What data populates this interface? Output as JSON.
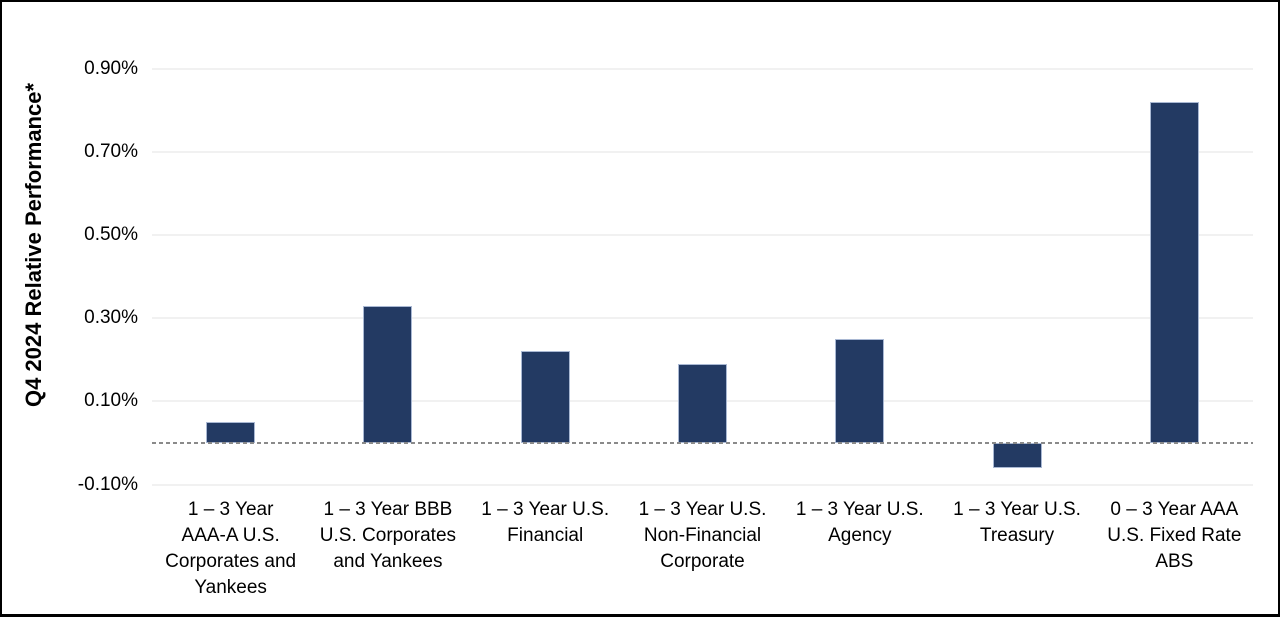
{
  "chart_data": {
    "type": "bar",
    "title": "",
    "xlabel": "",
    "ylabel": "Q4 2024 Relative Performance*",
    "unit": "%",
    "categories": [
      "1 – 3 Year AAA-A U.S. Corporates and Yankees",
      "1 – 3 Year BBB U.S. Corporates and Yankees",
      "1 – 3 Year U.S. Financial",
      "1 – 3 Year U.S. Non-Financial Corporate",
      "1 – 3 Year U.S. Agency",
      "1 – 3 Year U.S. Treasury",
      "0 – 3 Year AAA U.S. Fixed Rate ABS"
    ],
    "category_lines": [
      [
        "1 – 3 Year",
        "AAA-A U.S.",
        "Corporates and",
        "Yankees"
      ],
      [
        "1 – 3 Year BBB",
        "U.S. Corporates",
        "and Yankees"
      ],
      [
        "1 – 3 Year U.S.",
        "Financial"
      ],
      [
        "1 – 3 Year U.S.",
        "Non-Financial",
        "Corporate"
      ],
      [
        "1 – 3 Year U.S.",
        "Agency"
      ],
      [
        "1 – 3 Year U.S.",
        "Treasury"
      ],
      [
        "0 – 3 Year AAA",
        "U.S. Fixed Rate",
        "ABS"
      ]
    ],
    "values": [
      0.05,
      0.33,
      0.22,
      0.19,
      0.25,
      -0.06,
      0.82
    ],
    "yticks": [
      0.9,
      0.7,
      0.5,
      0.3,
      0.1,
      -0.1
    ],
    "ytick_labels": [
      "0.90%",
      "0.70%",
      "0.50%",
      "0.30%",
      "0.10%",
      "-0.10%"
    ],
    "ylim": [
      -0.15,
      0.95
    ],
    "grid": "horizontal light gridlines at each y tick",
    "zero_line": "dashed gray horizontal line at 0%",
    "legend": "none",
    "colors": {
      "bar_fill": "#233A63",
      "bar_edge": "#A9B8D3",
      "gridline": "#F1F1F1",
      "zero_line": "#8A8A8A",
      "text": "#000000",
      "frame_border": "#000000",
      "background": "#FFFFFF"
    }
  }
}
